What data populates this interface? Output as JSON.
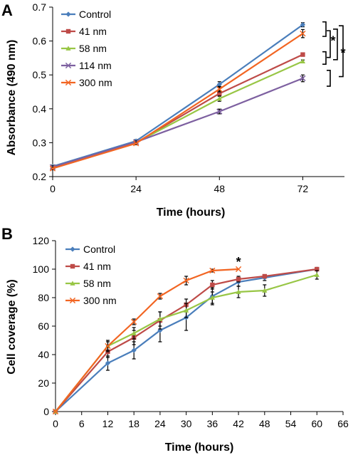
{
  "chart_data": [
    {
      "panel_label": "A",
      "type": "line",
      "title": "",
      "xlabel": "Time (hours)",
      "ylabel": "Absorbance (490 nm)",
      "x": [
        0,
        24,
        48,
        72
      ],
      "xticks": [
        0,
        24,
        48,
        72
      ],
      "xlim": [
        0,
        84
      ],
      "ylim": [
        0.2,
        0.7
      ],
      "yticks": [
        0.2,
        0.3,
        0.4,
        0.5,
        0.6,
        0.7
      ],
      "ytick_decimals": 1,
      "grid": false,
      "legend_position": "top-left",
      "series": [
        {
          "name": "Control",
          "color": "#4a7ebb",
          "marker": "diamond",
          "values": [
            0.23,
            0.305,
            0.472,
            0.648
          ],
          "errors": [
            0.004,
            0.004,
            0.008,
            0.006
          ]
        },
        {
          "name": "41 nm",
          "color": "#be4b48",
          "marker": "square",
          "values": [
            0.226,
            0.3,
            0.445,
            0.56
          ],
          "errors": [
            0.004,
            0.004,
            0.008,
            0.004
          ]
        },
        {
          "name": "58 nm",
          "color": "#98c645",
          "marker": "triangle",
          "values": [
            0.228,
            0.3,
            0.43,
            0.54
          ],
          "errors": [
            0.004,
            0.004,
            0.008,
            0.004
          ]
        },
        {
          "name": "114 nm",
          "color": "#7d60a0",
          "marker": "x",
          "values": [
            0.228,
            0.302,
            0.392,
            0.49
          ],
          "errors": [
            0.004,
            0.004,
            0.007,
            0.01
          ]
        },
        {
          "name": "300 nm",
          "color": "#f26522",
          "marker": "x",
          "values": [
            0.224,
            0.298,
            0.458,
            0.622
          ],
          "errors": [
            0.004,
            0.004,
            0.008,
            0.012
          ]
        }
      ],
      "annotations": [
        {
          "text": "*",
          "between_y": [
            0.648,
            0.56
          ]
        },
        {
          "text": "*",
          "between_y": [
            0.648,
            0.49
          ]
        }
      ],
      "brackets_y": [
        [
          0.648,
          0.622
        ],
        [
          0.622,
          0.56
        ],
        [
          0.56,
          0.54
        ],
        [
          0.505,
          0.475
        ]
      ]
    },
    {
      "panel_label": "B",
      "type": "line",
      "title": "",
      "xlabel": "Time (hours)",
      "ylabel": "Cell coverage (%)",
      "xticks": [
        0,
        6,
        12,
        18,
        24,
        30,
        36,
        42,
        48,
        54,
        60,
        66
      ],
      "xlim": [
        0,
        66
      ],
      "ylim": [
        0,
        120
      ],
      "yticks": [
        0,
        20,
        40,
        60,
        80,
        100,
        120
      ],
      "ytick_decimals": 0,
      "grid": false,
      "legend_position": "top-left",
      "series": [
        {
          "name": "Control",
          "color": "#4a7ebb",
          "marker": "diamond",
          "x": [
            0,
            12,
            18,
            24,
            30,
            36,
            42,
            48,
            60
          ],
          "values": [
            0,
            34,
            43,
            57,
            66,
            81,
            91,
            94,
            100
          ],
          "errors": [
            0,
            5,
            6,
            8,
            9,
            6,
            3,
            2,
            1
          ]
        },
        {
          "name": "41 nm",
          "color": "#be4b48",
          "marker": "square",
          "x": [
            0,
            12,
            18,
            24,
            30,
            36,
            42,
            48,
            60
          ],
          "values": [
            0,
            42,
            52,
            64,
            75,
            89,
            93,
            95,
            100
          ],
          "errors": [
            0,
            4,
            5,
            6,
            4,
            3,
            2,
            1,
            1
          ]
        },
        {
          "name": "58 nm",
          "color": "#98c645",
          "marker": "triangle",
          "x": [
            0,
            12,
            18,
            24,
            30,
            36,
            42,
            48,
            60
          ],
          "values": [
            0,
            46,
            55,
            65,
            71,
            80,
            84,
            85,
            96
          ],
          "errors": [
            0,
            4,
            4,
            5,
            5,
            4,
            4,
            4,
            3
          ]
        },
        {
          "name": "300 nm",
          "color": "#f26522",
          "marker": "x",
          "x": [
            0,
            12,
            18,
            24,
            30,
            36,
            42
          ],
          "values": [
            0,
            46,
            63,
            81,
            92,
            99,
            100
          ],
          "errors": [
            0,
            3,
            2,
            2,
            3,
            1,
            0
          ]
        }
      ],
      "annotations": [
        {
          "text": "*",
          "x": 42,
          "y": 104
        }
      ]
    }
  ]
}
